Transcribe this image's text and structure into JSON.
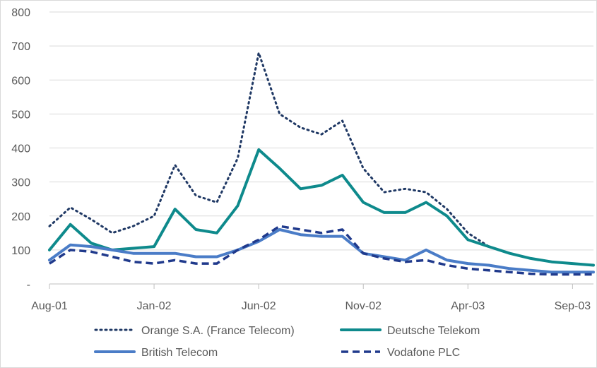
{
  "chart_data": {
    "type": "line",
    "title": "",
    "xlabel": "",
    "ylabel": "",
    "ylim": [
      0,
      800
    ],
    "yticks": [
      0,
      100,
      200,
      300,
      400,
      500,
      600,
      700,
      800
    ],
    "ytick_labels": [
      "-",
      "100",
      "200",
      "300",
      "400",
      "500",
      "600",
      "700",
      "800"
    ],
    "xlim": [
      "2001-08",
      "2003-10"
    ],
    "xticks": [
      "2001-08",
      "2002-01",
      "2002-06",
      "2002-11",
      "2003-04",
      "2003-09"
    ],
    "xtick_labels": [
      "Aug-01",
      "Jan-02",
      "Jun-02",
      "Nov-02",
      "Apr-03",
      "Sep-03"
    ],
    "grid": "horizontal",
    "legend_position": "bottom",
    "x": [
      "2001-08",
      "2001-09",
      "2001-10",
      "2001-11",
      "2001-12",
      "2002-01",
      "2002-02",
      "2002-03",
      "2002-04",
      "2002-05",
      "2002-06",
      "2002-07",
      "2002-08",
      "2002-09",
      "2002-10",
      "2002-11",
      "2002-12",
      "2003-01",
      "2003-02",
      "2003-03",
      "2003-04",
      "2003-05",
      "2003-06",
      "2003-07",
      "2003-08",
      "2003-09",
      "2003-10"
    ],
    "series": [
      {
        "name": "Orange S.A. (France Telecom)",
        "style": "dotted",
        "color": "#1f3864",
        "values": [
          170,
          225,
          190,
          150,
          170,
          200,
          350,
          260,
          240,
          370,
          680,
          500,
          460,
          440,
          480,
          340,
          270,
          280,
          270,
          220,
          150,
          110,
          90,
          75,
          65,
          60,
          55
        ]
      },
      {
        "name": "Deutsche Telekom",
        "style": "solid",
        "color": "#0e8a8c",
        "values": [
          100,
          175,
          120,
          100,
          105,
          110,
          220,
          160,
          150,
          230,
          395,
          340,
          280,
          290,
          320,
          240,
          210,
          210,
          240,
          200,
          130,
          110,
          90,
          75,
          65,
          60,
          55
        ]
      },
      {
        "name": "British Telecom",
        "style": "solid",
        "color": "#4a7cc7",
        "values": [
          70,
          115,
          110,
          100,
          90,
          90,
          90,
          80,
          80,
          100,
          125,
          160,
          145,
          140,
          140,
          90,
          80,
          70,
          100,
          70,
          60,
          55,
          45,
          40,
          35,
          35,
          35
        ]
      },
      {
        "name": "Vodafone PLC",
        "style": "dashed",
        "color": "#203a8c",
        "values": [
          60,
          100,
          95,
          80,
          65,
          60,
          70,
          60,
          60,
          100,
          130,
          170,
          160,
          150,
          160,
          90,
          75,
          65,
          70,
          55,
          45,
          40,
          35,
          30,
          28,
          28,
          28
        ]
      }
    ]
  }
}
